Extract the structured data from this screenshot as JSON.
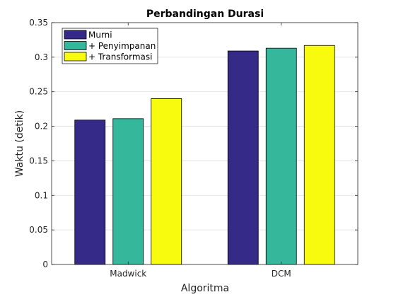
{
  "chart_data": {
    "type": "bar",
    "title": "Perbandingan Durasi",
    "xlabel": "Algoritma",
    "ylabel": "Waktu (detik)",
    "categories": [
      "Madwick",
      "DCM"
    ],
    "ylim": [
      0,
      0.35
    ],
    "yticks": [
      0,
      0.05,
      0.1,
      0.15,
      0.2,
      0.25,
      0.3,
      0.35
    ],
    "ytick_labels": [
      "0",
      "0.05",
      "0.1",
      "0.15",
      "0.2",
      "0.25",
      "0.3",
      "0.35"
    ],
    "grid": true,
    "legend_position": "top-left",
    "series": [
      {
        "name": "Murni",
        "color": "#352a87",
        "values": [
          0.209,
          0.309
        ]
      },
      {
        "name": "+ Penyimpanan",
        "color": "#35b79c",
        "values": [
          0.211,
          0.313
        ]
      },
      {
        "name": "+ Transformasi",
        "color": "#f9fb0e",
        "values": [
          0.24,
          0.317
        ]
      }
    ]
  }
}
